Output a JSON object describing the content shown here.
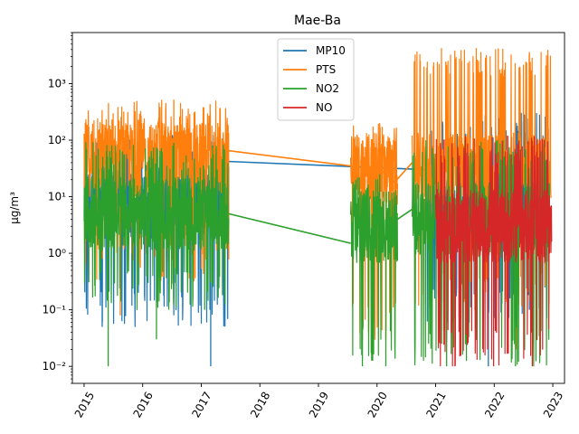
{
  "chart_data": {
    "type": "line",
    "title": "Mae-Ba",
    "xlabel": "",
    "ylabel": "µg/m³",
    "y_scale": "log",
    "ylim": [
      0.005,
      8000
    ],
    "xlim": [
      2014.8,
      2023.2
    ],
    "x_ticks": [
      "2015",
      "2016",
      "2017",
      "2018",
      "2019",
      "2020",
      "2021",
      "2022",
      "2023"
    ],
    "y_ticks": [
      "10⁻²",
      "10⁻¹",
      "10⁰",
      "10¹",
      "10²",
      "10³"
    ],
    "grid": false,
    "legend_position": "top-center",
    "series": [
      {
        "name": "MP10",
        "color": "#1f77b4",
        "segments": [
          {
            "x_range": [
              2015.0,
              2017.47
            ],
            "y_low": 0.05,
            "y_high": 130,
            "y_mid": 8,
            "min_spikes": [
              0.05,
              0.2,
              0.3,
              0.01
            ]
          },
          {
            "x_range": [
              2020.85,
              2022.95
            ],
            "y_low": 0.06,
            "y_high": 300,
            "y_mid": 6,
            "min_spikes": [
              0.06,
              0.01,
              0.1
            ]
          }
        ],
        "bridges": [
          [
            2017.47,
            42,
            2020.85,
            30
          ]
        ]
      },
      {
        "name": "PTS",
        "color": "#ff7f0e",
        "segments": [
          {
            "x_range": [
              2015.0,
              2017.47
            ],
            "y_low": 0.3,
            "y_high": 520,
            "y_mid": 45,
            "min_spikes": [
              0.08,
              0.35
            ]
          },
          {
            "x_range": [
              2019.55,
              2020.35
            ],
            "y_low": 0.03,
            "y_high": 200,
            "y_mid": 30,
            "min_spikes": [
              0.03,
              0.03
            ]
          },
          {
            "x_range": [
              2020.6,
              2022.97
            ],
            "y_low": 0.1,
            "y_high": 4200,
            "y_mid": 30,
            "min_spikes": [
              0.1,
              0.02
            ]
          }
        ],
        "bridges": [
          [
            2017.47,
            65,
            2019.55,
            35
          ],
          [
            2020.0,
            35,
            2020.3,
            18
          ],
          [
            2020.3,
            18,
            2020.6,
            40
          ]
        ]
      },
      {
        "name": "NO2",
        "color": "#2ca02c",
        "segments": [
          {
            "x_range": [
              2015.0,
              2017.47
            ],
            "y_low": 0.1,
            "y_high": 90,
            "y_mid": 5,
            "min_spikes": [
              0.01,
              0.03,
              0.1
            ]
          },
          {
            "x_range": [
              2019.55,
              2020.35
            ],
            "y_low": 0.01,
            "y_high": 25,
            "y_mid": 3,
            "min_spikes": [
              0.01,
              0.01
            ]
          },
          {
            "x_range": [
              2020.6,
              2022.95
            ],
            "y_low": 0.01,
            "y_high": 100,
            "y_mid": 4,
            "min_spikes": [
              0.01,
              0.01
            ]
          }
        ],
        "bridges": [
          [
            2017.47,
            5,
            2019.55,
            1.5
          ],
          [
            2020.35,
            4,
            2020.6,
            6
          ]
        ]
      },
      {
        "name": "NO",
        "color": "#d62728",
        "segments": [
          {
            "x_range": [
              2021.0,
              2022.98
            ],
            "y_low": 0.01,
            "y_high": 120,
            "y_mid": 3,
            "min_spikes": [
              0.01,
              0.01,
              0.01
            ]
          }
        ],
        "bridges": []
      }
    ]
  }
}
